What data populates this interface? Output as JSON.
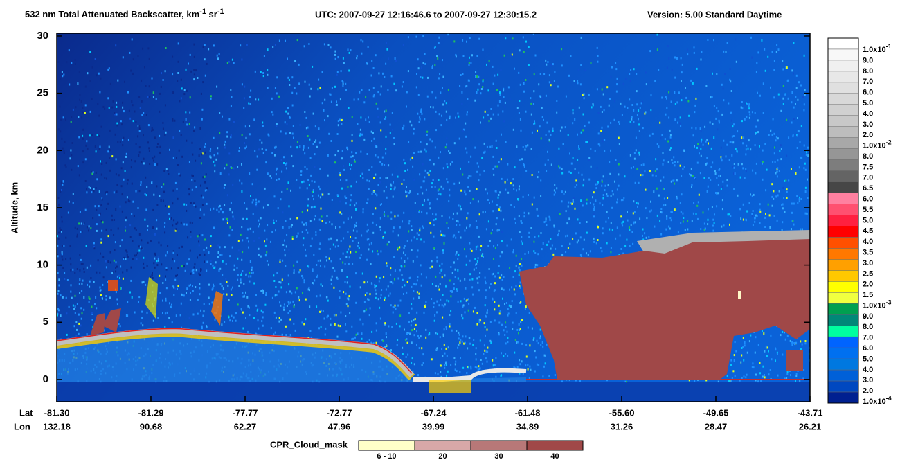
{
  "chart_data": {
    "type": "curtain",
    "title": {
      "text1": "532 nm Total Attenuated Backscatter, km",
      "sup1": "-1",
      "text2": " sr",
      "sup2": "-1"
    },
    "utc": "UTC:  2007-09-27 12:16:46.6  to  2007-09-27 12:30:15.2",
    "version": "Version: 5.00  Standard  Daytime",
    "ylabel": "Altitude, km",
    "ylim": [
      -1.94,
      30.24
    ],
    "yticks": [
      0,
      5,
      10,
      15,
      20,
      25,
      30
    ],
    "x_rows": {
      "lat_title": "Lat",
      "lon_title": "Lon",
      "lat": [
        "-81.30",
        "-81.29",
        "-77.77",
        "-72.77",
        "-67.24",
        "-61.48",
        "-55.60",
        "-49.65",
        "-43.71"
      ],
      "lon": [
        "132.18",
        "90.68",
        "62.27",
        "47.96",
        "39.99",
        "34.89",
        "31.26",
        "28.47",
        "26.21"
      ]
    },
    "colorbar": {
      "labels": [
        {
          "text": "1.0x10",
          "exp": "-1"
        },
        {
          "text": "9.0"
        },
        {
          "text": "8.0"
        },
        {
          "text": "7.0"
        },
        {
          "text": "6.0"
        },
        {
          "text": "5.0"
        },
        {
          "text": "4.0"
        },
        {
          "text": "3.0"
        },
        {
          "text": "2.0"
        },
        {
          "text": "1.0x10",
          "exp": "-2"
        },
        {
          "text": "8.0"
        },
        {
          "text": "7.5"
        },
        {
          "text": "7.0"
        },
        {
          "text": "6.5"
        },
        {
          "text": "6.0"
        },
        {
          "text": "5.5"
        },
        {
          "text": "5.0"
        },
        {
          "text": "4.5"
        },
        {
          "text": "4.0"
        },
        {
          "text": "3.5"
        },
        {
          "text": "3.0"
        },
        {
          "text": "2.5"
        },
        {
          "text": "2.0"
        },
        {
          "text": "1.5"
        },
        {
          "text": "1.0x10",
          "exp": "-3"
        },
        {
          "text": "9.0"
        },
        {
          "text": "8.0"
        },
        {
          "text": "7.0"
        },
        {
          "text": "6.0"
        },
        {
          "text": "5.0"
        },
        {
          "text": "4.0"
        },
        {
          "text": "3.0"
        },
        {
          "text": "2.0"
        },
        {
          "text": "1.0x10",
          "exp": "-4"
        }
      ],
      "colors": [
        "#ffffff",
        "#f8f8f8",
        "#f0f0f0",
        "#e8e8e8",
        "#e0e0e0",
        "#d8d8d8",
        "#d0d0d0",
        "#c8c8c8",
        "#bdbdbd",
        "#a8a8a8",
        "#969696",
        "#7d7d7d",
        "#646464",
        "#464646",
        "#ff80a0",
        "#ff5070",
        "#ff2040",
        "#ff0000",
        "#ff5000",
        "#ff7800",
        "#ffa000",
        "#ffc800",
        "#ffff00",
        "#f0ff40",
        "#00a050",
        "#008878",
        "#00ffa0",
        "#0064ff",
        "#0070f0",
        "#0078e0",
        "#0060d8",
        "#0048c0",
        "#002090"
      ]
    },
    "cloud_mask": {
      "title": "CPR_Cloud_mask",
      "labels": [
        "6 - 10",
        "20",
        "30",
        "40"
      ],
      "colors": [
        "#ffffc8",
        "#d8a8a8",
        "#b87878",
        "#a04848"
      ]
    }
  }
}
